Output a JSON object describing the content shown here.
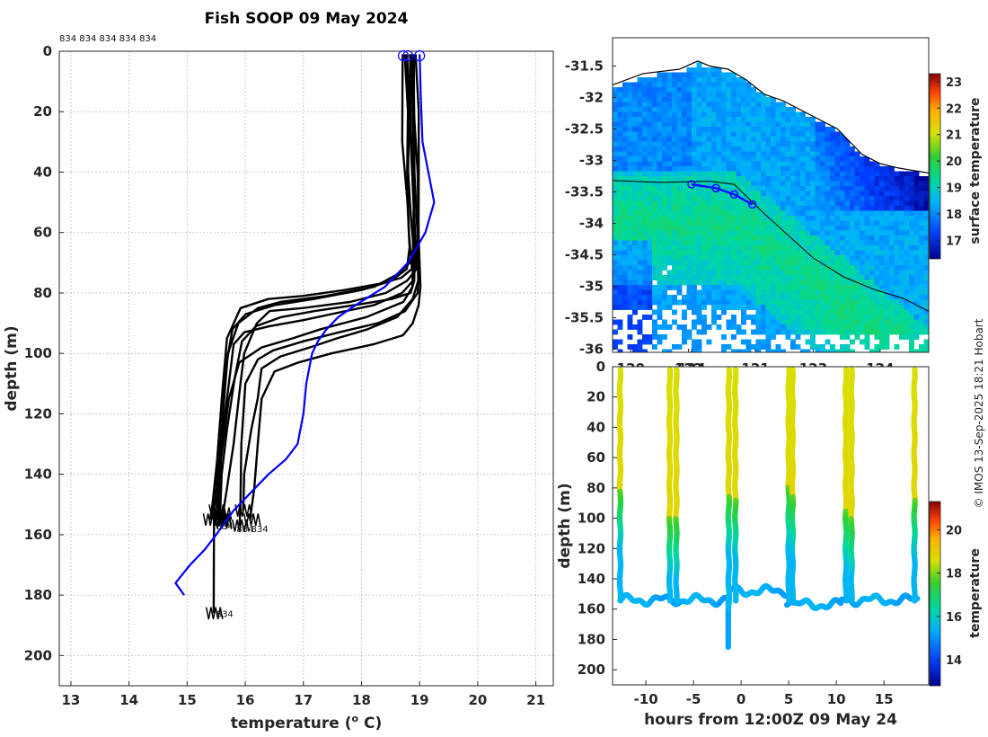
{
  "credit": "© IMOS 13-Sep-2025 18:21 Hobart",
  "chart_data": [
    {
      "id": "profiles",
      "type": "line",
      "title": "Fish SOOP 09 May 2024",
      "xlabel": "temperature (",
      "xlabel_sup": "o",
      "xlabel_end": " C)",
      "ylabel": "depth (m)",
      "xlim": [
        12.8,
        21.3
      ],
      "ylim": [
        210,
        0
      ],
      "xticks": [
        "13",
        "14",
        "15",
        "16",
        "17",
        "18",
        "19",
        "20",
        "21"
      ],
      "yticks": [
        "0",
        "20",
        "40",
        "60",
        "80",
        "100",
        "120",
        "140",
        "160",
        "180",
        "200"
      ],
      "grid": true,
      "top_labels": "834 834 834 834 834",
      "end_labels": [
        {
          "text": "834",
          "x": 15.5,
          "y": 157
        },
        {
          "text": "834",
          "x": 15.85,
          "y": 158
        },
        {
          "text": "834",
          "x": 16.1,
          "y": 158
        },
        {
          "text": "834",
          "x": 15.5,
          "y": 186
        }
      ],
      "series": [
        {
          "name": "drop1",
          "color": "#000000",
          "points": [
            [
              18.78,
              1
            ],
            [
              18.8,
              20
            ],
            [
              18.82,
              40
            ],
            [
              18.85,
              55
            ],
            [
              18.88,
              65
            ],
            [
              18.85,
              70
            ],
            [
              18.6,
              74
            ],
            [
              18.2,
              78
            ],
            [
              17.4,
              81
            ],
            [
              16.6,
              83
            ],
            [
              16.2,
              85
            ],
            [
              15.9,
              90
            ],
            [
              15.7,
              100
            ],
            [
              15.6,
              120
            ],
            [
              15.55,
              140
            ],
            [
              15.5,
              150
            ],
            [
              15.55,
              155
            ]
          ]
        },
        {
          "name": "drop2",
          "color": "#000000",
          "points": [
            [
              18.85,
              1
            ],
            [
              18.88,
              20
            ],
            [
              18.92,
              40
            ],
            [
              18.95,
              60
            ],
            [
              18.95,
              72
            ],
            [
              18.8,
              76
            ],
            [
              18.4,
              80
            ],
            [
              17.8,
              83
            ],
            [
              17.0,
              85
            ],
            [
              16.4,
              86
            ],
            [
              16.2,
              90
            ],
            [
              16.0,
              100
            ],
            [
              15.9,
              110
            ],
            [
              15.8,
              130
            ],
            [
              15.7,
              145
            ],
            [
              15.6,
              153
            ]
          ]
        },
        {
          "name": "drop3",
          "color": "#000000",
          "points": [
            [
              18.82,
              1
            ],
            [
              18.86,
              25
            ],
            [
              18.9,
              50
            ],
            [
              18.92,
              70
            ],
            [
              18.9,
              76
            ],
            [
              18.7,
              80
            ],
            [
              18.2,
              84
            ],
            [
              17.5,
              87
            ],
            [
              17.0,
              89
            ],
            [
              16.4,
              91
            ],
            [
              16.0,
              93
            ],
            [
              15.8,
              97
            ],
            [
              15.7,
              110
            ],
            [
              15.6,
              130
            ],
            [
              15.55,
              145
            ],
            [
              15.5,
              152
            ]
          ]
        },
        {
          "name": "drop4",
          "color": "#000000",
          "points": [
            [
              18.9,
              1
            ],
            [
              18.92,
              20
            ],
            [
              18.95,
              40
            ],
            [
              18.98,
              60
            ],
            [
              19.0,
              74
            ],
            [
              18.95,
              80
            ],
            [
              18.75,
              86
            ],
            [
              18.3,
              90
            ],
            [
              17.6,
              93
            ],
            [
              17.0,
              96
            ],
            [
              16.5,
              99
            ],
            [
              16.2,
              102
            ],
            [
              16.0,
              110
            ],
            [
              15.95,
              130
            ],
            [
              15.9,
              150
            ],
            [
              15.9,
              157
            ]
          ]
        },
        {
          "name": "drop5",
          "color": "#000000",
          "points": [
            [
              18.8,
              1
            ],
            [
              18.85,
              30
            ],
            [
              18.88,
              50
            ],
            [
              18.9,
              70
            ],
            [
              18.88,
              78
            ],
            [
              18.7,
              83
            ],
            [
              18.1,
              88
            ],
            [
              17.3,
              92
            ],
            [
              16.8,
              95
            ],
            [
              16.3,
              98
            ],
            [
              15.9,
              103
            ],
            [
              15.7,
              115
            ],
            [
              15.6,
              135
            ],
            [
              15.55,
              150
            ],
            [
              15.6,
              155
            ]
          ]
        },
        {
          "name": "drop6",
          "color": "#000000",
          "points": [
            [
              18.95,
              1
            ],
            [
              18.97,
              20
            ],
            [
              18.98,
              40
            ],
            [
              19.0,
              60
            ],
            [
              19.0,
              78
            ],
            [
              18.98,
              84
            ],
            [
              18.9,
              90
            ],
            [
              18.7,
              94
            ],
            [
              18.2,
              97
            ],
            [
              17.5,
              100
            ],
            [
              16.9,
              103
            ],
            [
              16.5,
              106
            ],
            [
              16.3,
              115
            ],
            [
              16.2,
              130
            ],
            [
              16.15,
              145
            ],
            [
              16.1,
              155
            ]
          ]
        },
        {
          "name": "drop7",
          "color": "#000000",
          "points": [
            [
              18.75,
              1
            ],
            [
              18.78,
              20
            ],
            [
              18.8,
              40
            ],
            [
              18.82,
              60
            ],
            [
              18.85,
              72
            ],
            [
              18.7,
              75
            ],
            [
              18.3,
              77
            ],
            [
              17.7,
              79
            ],
            [
              17.0,
              81
            ],
            [
              16.4,
              82
            ],
            [
              15.9,
              85
            ],
            [
              15.7,
              95
            ],
            [
              15.6,
              115
            ],
            [
              15.5,
              135
            ],
            [
              15.45,
              150
            ],
            [
              15.4,
              155
            ]
          ]
        },
        {
          "name": "drop8",
          "color": "#000000",
          "points": [
            [
              18.88,
              1
            ],
            [
              18.9,
              20
            ],
            [
              18.93,
              40
            ],
            [
              18.95,
              60
            ],
            [
              18.97,
              76
            ],
            [
              18.9,
              82
            ],
            [
              18.6,
              88
            ],
            [
              18.1,
              92
            ],
            [
              17.6,
              95
            ],
            [
              17.1,
              98
            ],
            [
              16.6,
              101
            ],
            [
              16.3,
              105
            ],
            [
              16.2,
              115
            ],
            [
              16.1,
              125
            ],
            [
              16.0,
              140
            ],
            [
              15.95,
              152
            ]
          ]
        },
        {
          "name": "drop9",
          "color": "#000000",
          "points": [
            [
              18.82,
              1
            ],
            [
              18.85,
              20
            ],
            [
              18.88,
              40
            ],
            [
              18.9,
              60
            ],
            [
              18.92,
              76
            ],
            [
              18.85,
              80
            ],
            [
              18.5,
              82
            ],
            [
              17.9,
              84
            ],
            [
              17.2,
              86
            ],
            [
              16.6,
              88
            ],
            [
              16.2,
              91
            ],
            [
              15.95,
              96
            ],
            [
              15.8,
              108
            ],
            [
              15.7,
              125
            ],
            [
              15.6,
              140
            ],
            [
              15.55,
              152
            ],
            [
              15.6,
              156
            ]
          ]
        },
        {
          "name": "drop10",
          "color": "#000000",
          "points": [
            [
              18.7,
              1
            ],
            [
              18.72,
              30
            ],
            [
              18.78,
              50
            ],
            [
              18.82,
              65
            ],
            [
              18.8,
              72
            ],
            [
              18.5,
              76
            ],
            [
              18.0,
              79
            ],
            [
              17.2,
              82
            ],
            [
              16.5,
              84
            ],
            [
              16.0,
              87
            ],
            [
              15.8,
              92
            ],
            [
              15.65,
              105
            ],
            [
              15.55,
              125
            ],
            [
              15.5,
              145
            ],
            [
              15.45,
              152
            ],
            [
              15.45,
              186
            ]
          ]
        },
        {
          "name": "climatology",
          "color": "#0000ff",
          "points": [
            [
              19.0,
              1
            ],
            [
              19.02,
              15
            ],
            [
              19.05,
              30
            ],
            [
              19.25,
              50
            ],
            [
              19.1,
              60
            ],
            [
              18.8,
              70
            ],
            [
              18.4,
              78
            ],
            [
              17.9,
              84
            ],
            [
              17.6,
              88
            ],
            [
              17.4,
              92
            ],
            [
              17.25,
              96
            ],
            [
              17.15,
              100
            ],
            [
              17.05,
              110
            ],
            [
              17.0,
              120
            ],
            [
              16.9,
              130
            ],
            [
              16.7,
              135
            ],
            [
              16.4,
              140
            ],
            [
              16.1,
              146
            ],
            [
              15.8,
              152
            ],
            [
              15.5,
              160
            ],
            [
              15.3,
              165
            ],
            [
              15.05,
              170
            ],
            [
              14.8,
              176
            ],
            [
              14.95,
              180
            ]
          ]
        }
      ],
      "start_markers": [
        [
          18.72,
          1.5
        ],
        [
          18.8,
          1.5
        ],
        [
          19.0,
          1.5
        ]
      ]
    },
    {
      "id": "map",
      "type": "heatmap",
      "xticks": [
        "120",
        "122",
        "124",
        "121",
        "123",
        "124"
      ],
      "xtick_values": [
        120,
        121,
        122,
        123,
        124
      ],
      "xlim": [
        119.7,
        124.9
      ],
      "ylim": [
        -36.05,
        -31.05
      ],
      "yticks": [
        "-31.5",
        "-32",
        "-32.5",
        "-33",
        "-33.5",
        "-34",
        "-34.5",
        "-35",
        "-35.5",
        "-36"
      ],
      "colorbar": {
        "label": "surface temperature",
        "ticks": [
          "17",
          "18",
          "19",
          "20",
          "21",
          "22",
          "23"
        ],
        "range": [
          16.3,
          23.3
        ]
      },
      "track": [
        [
          121.0,
          -33.38
        ],
        [
          121.4,
          -33.44
        ],
        [
          121.7,
          -33.54
        ],
        [
          122.0,
          -33.7
        ]
      ]
    },
    {
      "id": "section",
      "type": "scatter",
      "xlabel": "hours from 12:00Z 09 May 24",
      "ylabel": "depth (m)",
      "xlim": [
        -13.5,
        19.7
      ],
      "ylim": [
        210,
        0
      ],
      "xticks": [
        "-10",
        "-5",
        "0",
        "5",
        "10",
        "15"
      ],
      "yticks": [
        "0",
        "20",
        "40",
        "60",
        "80",
        "100",
        "120",
        "140",
        "160",
        "180",
        "200"
      ],
      "colorbar": {
        "label": "temperature",
        "ticks": [
          "14",
          "16",
          "18",
          "20"
        ],
        "range": [
          12.8,
          21.3
        ]
      },
      "casts": [
        -12.7,
        -7.5,
        -6.8,
        -1.3,
        -0.6,
        5.0,
        5.4,
        11.0,
        11.6,
        18.2
      ],
      "cast_mix_depth": [
        82,
        100,
        100,
        85,
        88,
        80,
        86,
        95,
        100,
        88
      ]
    }
  ]
}
